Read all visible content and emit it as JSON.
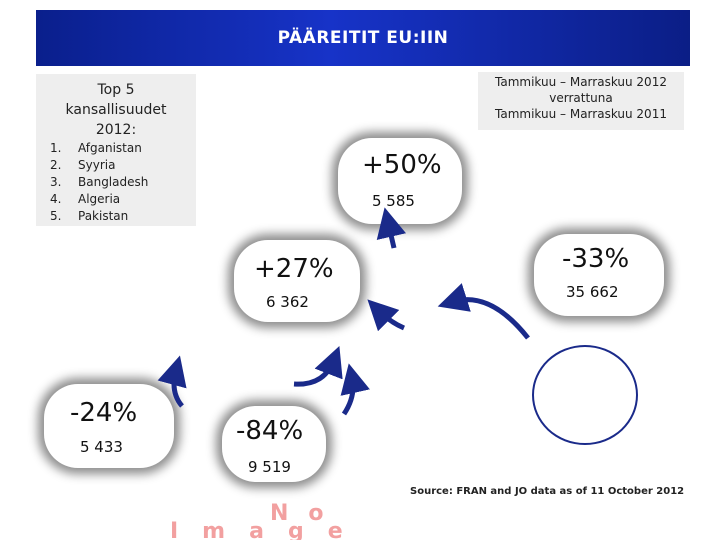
{
  "title": "PÄÄREITIT EU:IIN",
  "top5": {
    "heading_lines": [
      "Top 5",
      "kansallisuudet",
      "2012:"
    ],
    "items": [
      {
        "num": "1.",
        "name": "Afganistan"
      },
      {
        "num": "2.",
        "name": "Syyria"
      },
      {
        "num": "3.",
        "name": "Bangladesh"
      },
      {
        "num": "4.",
        "name": "Algeria"
      },
      {
        "num": "5.",
        "name": "Pakistan"
      }
    ]
  },
  "comparison": {
    "lines": [
      "Tammikuu – Marraskuu 2012",
      "verrattuna",
      "Tammikuu – Marraskuu 2011"
    ]
  },
  "routes": [
    {
      "change": "+50%",
      "value": "5 585"
    },
    {
      "change": "-33%",
      "value": "35 662"
    },
    {
      "change": "+27%",
      "value": "6 362"
    },
    {
      "change": "-24%",
      "value": "5 433"
    },
    {
      "change": "-84%",
      "value": "9 519"
    }
  ],
  "source": "Source: FRAN and JO data as of 11 October 2012",
  "placeholder_text": "No image",
  "colors": {
    "title_bar": "#1733c8",
    "arrow": "#1a2a8a",
    "panel": "#eeeeee"
  }
}
